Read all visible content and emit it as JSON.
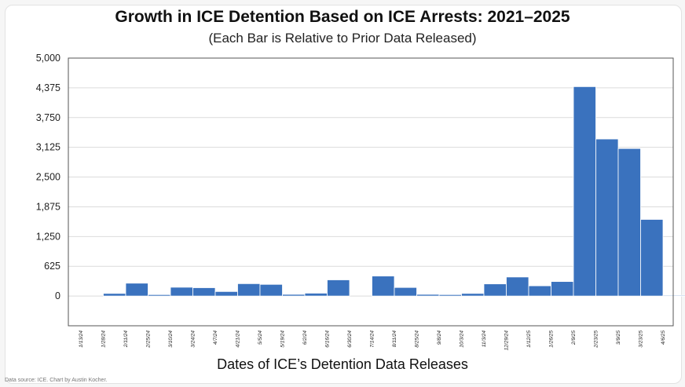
{
  "chart_data": {
    "type": "bar",
    "title": "Growth in ICE Detention Based on ICE Arrests: 2021–2025",
    "subtitle": "(Each Bar is Relative to Prior Data Released)",
    "xlabel": "Dates of ICE’s Detention Data Releases",
    "ylabel": "",
    "source": "Data source: ICE. Chart by Austin Kocher.",
    "ylim": [
      -625,
      5000
    ],
    "yticks": [
      "0",
      "625",
      "1,250",
      "1,875",
      "2,500",
      "3,125",
      "3,750",
      "4,375",
      "5,000"
    ],
    "ytick_values": [
      0,
      625,
      1250,
      1875,
      2500,
      3125,
      3750,
      4375,
      5000
    ],
    "grid": true,
    "bar_color": "#3a72be",
    "categories": [
      "1/13/24",
      "1/28/24",
      "2/11/24",
      "2/25/24",
      "3/10/24",
      "3/24/24",
      "4/7/24",
      "4/21/24",
      "5/5/24",
      "5/19/24",
      "6/2/24",
      "6/16/24",
      "6/30/24",
      "7/14/24",
      "8/11/24",
      "8/25/24",
      "9/8/24",
      "10/3/24",
      "11/3/24",
      "12/29/24",
      "1/12/25",
      "1/26/25",
      "2/9/25",
      "2/23/25",
      "3/9/25",
      "3/23/25",
      "4/6/25"
    ],
    "values": [
      0,
      55,
      270,
      30,
      185,
      175,
      95,
      260,
      245,
      35,
      60,
      340,
      0,
      420,
      180,
      35,
      30,
      55,
      255,
      400,
      215,
      305,
      4400,
      3300,
      3100,
      1610,
      15
    ]
  }
}
